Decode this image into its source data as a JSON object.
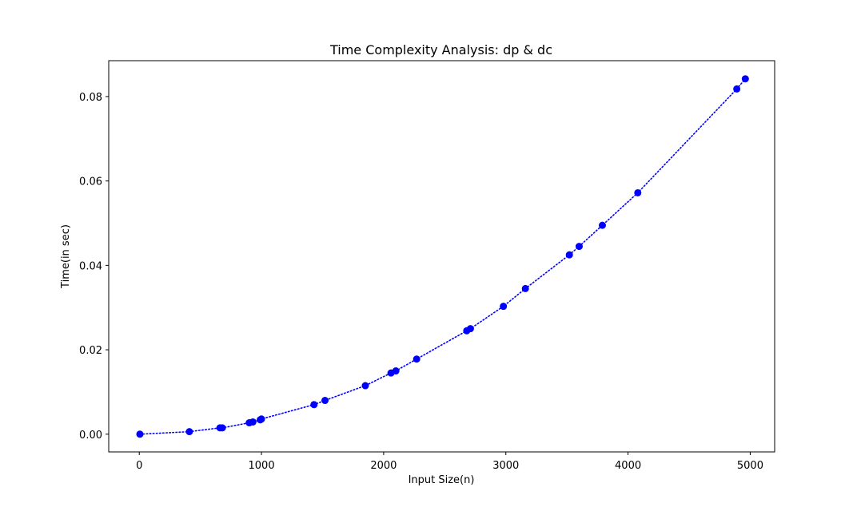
{
  "chart_data": {
    "type": "line",
    "title": "Time Complexity Analysis: dp & dc",
    "xlabel": "Input Size(n)",
    "ylabel": "Time(in sec)",
    "xlim": [
      -250,
      5200
    ],
    "ylim": [
      -0.0042,
      0.0885
    ],
    "x_ticks": [
      0,
      1000,
      2000,
      3000,
      4000,
      5000
    ],
    "x_tick_labels": [
      "0",
      "1000",
      "2000",
      "3000",
      "4000",
      "5000"
    ],
    "y_ticks": [
      0.0,
      0.02,
      0.04,
      0.06,
      0.08
    ],
    "y_tick_labels": [
      "0.00",
      "0.02",
      "0.04",
      "0.06",
      "0.08"
    ],
    "grid": false,
    "legend": "none",
    "series": [
      {
        "line_style": "dotted",
        "marker": "circle",
        "color": "#0000ff",
        "points": [
          [
            5,
            0.0
          ],
          [
            410,
            0.0006
          ],
          [
            660,
            0.0015
          ],
          [
            680,
            0.0015
          ],
          [
            900,
            0.0027
          ],
          [
            930,
            0.0029
          ],
          [
            990,
            0.0034
          ],
          [
            1000,
            0.0036
          ],
          [
            1430,
            0.007
          ],
          [
            1520,
            0.008
          ],
          [
            1850,
            0.0115
          ],
          [
            2060,
            0.0145
          ],
          [
            2100,
            0.015
          ],
          [
            2270,
            0.0178
          ],
          [
            2680,
            0.0245
          ],
          [
            2710,
            0.025
          ],
          [
            2980,
            0.0303
          ],
          [
            3160,
            0.0345
          ],
          [
            3520,
            0.0425
          ],
          [
            3600,
            0.0445
          ],
          [
            3790,
            0.0495
          ],
          [
            4080,
            0.0572
          ],
          [
            4890,
            0.0818
          ],
          [
            4960,
            0.0842
          ]
        ]
      }
    ]
  }
}
